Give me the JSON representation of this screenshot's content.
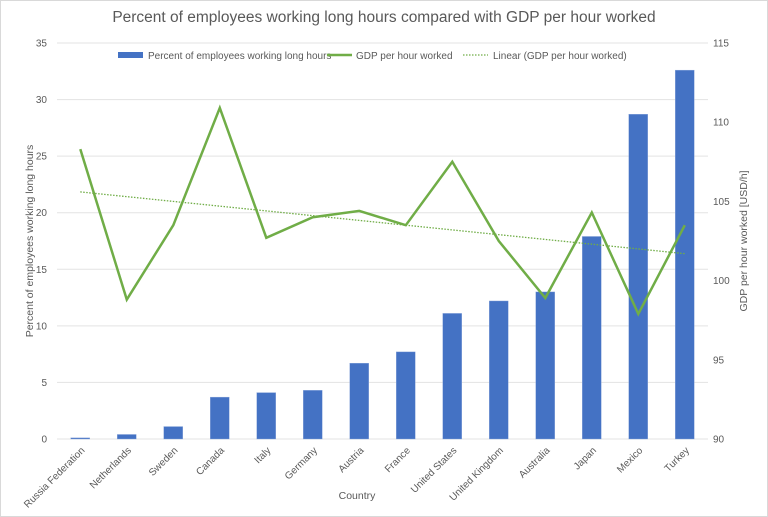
{
  "chart_data": {
    "type": "bar",
    "title": "Percent of employees working long hours compared with GDP per hour worked",
    "xlabel": "Country",
    "ylabel": "Percent of employees working long hours",
    "y2label": "GDP per hour worked [USD/h]",
    "ylim": [
      0,
      35
    ],
    "y2lim": [
      90,
      115
    ],
    "yticks": [
      0,
      5,
      10,
      15,
      20,
      25,
      30,
      35
    ],
    "y2ticks": [
      90,
      95,
      100,
      105,
      110,
      115
    ],
    "grid": true,
    "legend_position": "top",
    "categories": [
      "Russia Federation",
      "Netherlands",
      "Sweden",
      "Canada",
      "Italy",
      "Germany",
      "Austria",
      "France",
      "United States",
      "United Kingdom",
      "Australia",
      "Japan",
      "Mexico",
      "Turkey"
    ],
    "series": [
      {
        "name": "Percent of employees working long hours",
        "type": "bar",
        "axis": "left",
        "color": "#4472c4",
        "values": [
          0.1,
          0.4,
          1.1,
          3.7,
          4.1,
          4.3,
          6.7,
          7.7,
          11.1,
          12.2,
          13.0,
          17.9,
          28.7,
          32.6
        ]
      },
      {
        "name": "GDP per hour worked",
        "type": "line",
        "axis": "right",
        "color": "#70ad47",
        "values": [
          108.3,
          98.8,
          103.5,
          110.9,
          102.7,
          104.0,
          104.4,
          103.5,
          107.5,
          102.5,
          98.9,
          104.3,
          97.9,
          103.5
        ]
      },
      {
        "name": "Linear (GDP per hour worked)",
        "type": "line-dotted",
        "axis": "right",
        "color": "#70ad47",
        "start": 105.6,
        "end": 101.7
      }
    ]
  }
}
